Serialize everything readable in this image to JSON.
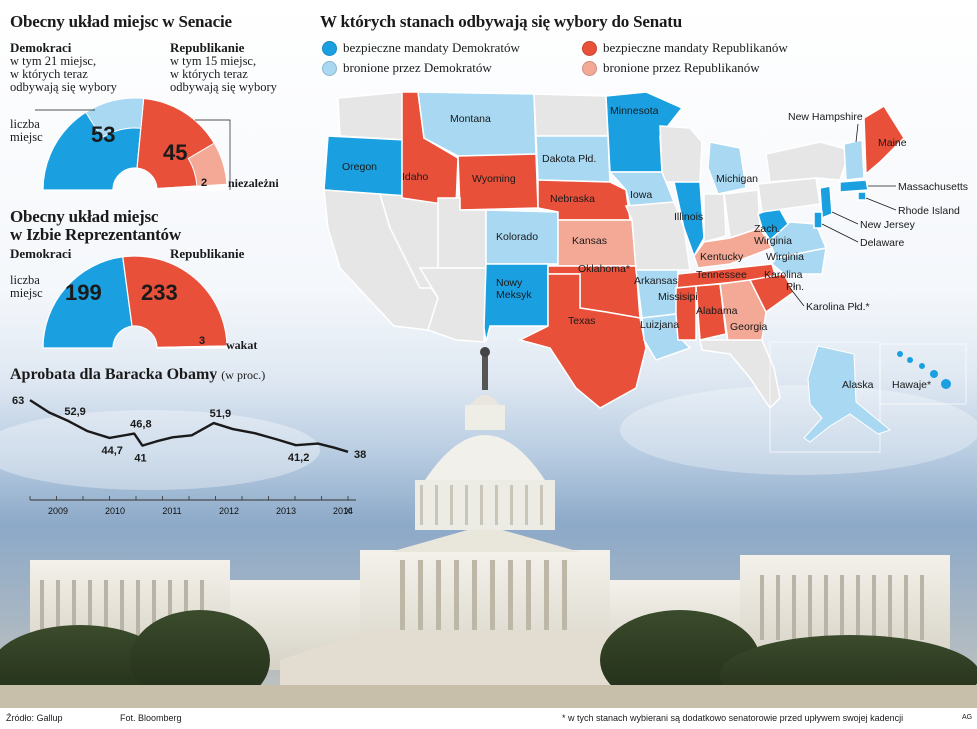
{
  "colors": {
    "dem_safe": "#1aa0e0",
    "dem_def": "#a8d8f2",
    "rep_safe": "#e9503a",
    "rep_def": "#f3a996",
    "ind": "#ffffff",
    "na": "#e6e6e6",
    "line": "#1a1a1a"
  },
  "senate": {
    "title": "Obecny układ miejsc w Senacie",
    "dem_label": "Demokraci",
    "dem_sub": [
      "w tym 21 miejsc,",
      "w których teraz",
      "odbywają się wybory"
    ],
    "rep_label": "Republikanie",
    "rep_sub": [
      "w tym 15 miejsc,",
      "w których teraz",
      "odbywają się wybory"
    ],
    "seats_label": [
      "liczba",
      "miejsc"
    ],
    "ind_label": "niezależni"
  },
  "house": {
    "title": [
      "Obecny układ miejsc",
      "w Izbie Reprezentantów"
    ],
    "dem_label": "Demokraci",
    "rep_label": "Republikanie",
    "seats_label": [
      "liczba",
      "miejsc"
    ],
    "vacant_label": "wakat"
  },
  "approval": {
    "title": "Aprobata dla Baracka Obamy",
    "unit": "(w proc.)"
  },
  "map": {
    "title": "W których stanach odbywają się wybory do Senatu",
    "legend": [
      {
        "label": "bezpieczne mandaty Demokratów",
        "color": "#1aa0e0"
      },
      {
        "label": "bronione przez Demokratów",
        "color": "#a8d8f2"
      },
      {
        "label": "bezpieczne mandaty Republikanów",
        "color": "#e9503a"
      },
      {
        "label": "bronione przez Republikanów",
        "color": "#f3a996"
      }
    ],
    "states": {
      "montana": "Montana",
      "oregon": "Oregon",
      "idaho": "Idaho",
      "wyoming": "Wyoming",
      "dakota": "Dakota Płd.",
      "minnesota": "Minnesota",
      "nebraska": "Nebraska",
      "iowa": "Iowa",
      "michigan": "Michigan",
      "illinois": "Illinois",
      "colorado": "Kolorado",
      "kansas": "Kansas",
      "oklahoma": "Oklahoma*",
      "nmexico": "Nowy Meksyk",
      "texas": "Texas",
      "arkansas": "Arkansas",
      "luizjana": "Luizjana",
      "mississippi": "Missisipi",
      "alabama": "Alabama",
      "georgia": "Georgia",
      "tennessee": "Tennessee",
      "kentucky": "Kentucky",
      "wvirginia": [
        "Zach.",
        "Wirginia"
      ],
      "virginia": "Wirginia",
      "ncarolina": [
        "Karolina",
        "Płn."
      ],
      "scarolina": "Karolina Płd.*",
      "njersey": "New Jersey",
      "delaware": "Delaware",
      "rhode": "Rhode Island",
      "mass": "Massachusetts",
      "nh": "New Hampshire",
      "maine": "Maine",
      "alaska": "Alaska",
      "hawaii": "Hawaje*"
    }
  },
  "chart_data": [
    {
      "type": "pie",
      "title": "Obecny układ miejsc w Senacie",
      "layout": "semicircle",
      "slices": [
        {
          "name": "Demokraci",
          "value": 53
        },
        {
          "name": "Republikanie",
          "value": 45
        },
        {
          "name": "niezależni",
          "value": 2
        }
      ],
      "defended": [
        {
          "name": "Demokraci",
          "value": 21
        },
        {
          "name": "Republikanie",
          "value": 15
        }
      ]
    },
    {
      "type": "pie",
      "title": "Obecny układ miejsc w Izbie Reprezentantów",
      "layout": "semicircle",
      "slices": [
        {
          "name": "Demokraci",
          "value": 199
        },
        {
          "name": "Republikanie",
          "value": 233
        },
        {
          "name": "wakat",
          "value": 3
        }
      ]
    },
    {
      "type": "line",
      "title": "Aprobata dla Baracka Obamy",
      "ylabel": "(w proc.)",
      "x_ticks": [
        "2009",
        "2010",
        "2011",
        "2012",
        "2013",
        "2014",
        "X"
      ],
      "x": [
        2009.0,
        2009.35,
        2009.7,
        2010.05,
        2010.45,
        2010.9,
        2011.05,
        2011.3,
        2011.6,
        2011.95,
        2012.35,
        2012.7,
        2013.1,
        2013.5,
        2013.85,
        2014.25,
        2014.55,
        2014.8
      ],
      "y": [
        63,
        57,
        52.9,
        48,
        44.7,
        46.8,
        41,
        43,
        45,
        46,
        51.9,
        49,
        47,
        44,
        41.2,
        42,
        40,
        38
      ],
      "labels": [
        {
          "x": 2009.0,
          "y": 63,
          "text": "63"
        },
        {
          "x": 2009.7,
          "y": 52.9,
          "text": "52,9"
        },
        {
          "x": 2010.45,
          "y": 44.7,
          "text": "44,7"
        },
        {
          "x": 2010.9,
          "y": 46.8,
          "text": "46,8"
        },
        {
          "x": 2011.05,
          "y": 41,
          "text": "41"
        },
        {
          "x": 2012.35,
          "y": 51.9,
          "text": "51,9"
        },
        {
          "x": 2013.85,
          "y": 41.2,
          "text": "41,2"
        },
        {
          "x": 2014.8,
          "y": 38,
          "text": "38"
        }
      ]
    }
  ],
  "footer": {
    "source": "Źródło: Gallup",
    "photo": "Fot. Bloomberg",
    "note": "* w tych stanach wybierani są dodatkowo senatorowie przed upływem swojej kadencji",
    "sig": "AG"
  }
}
